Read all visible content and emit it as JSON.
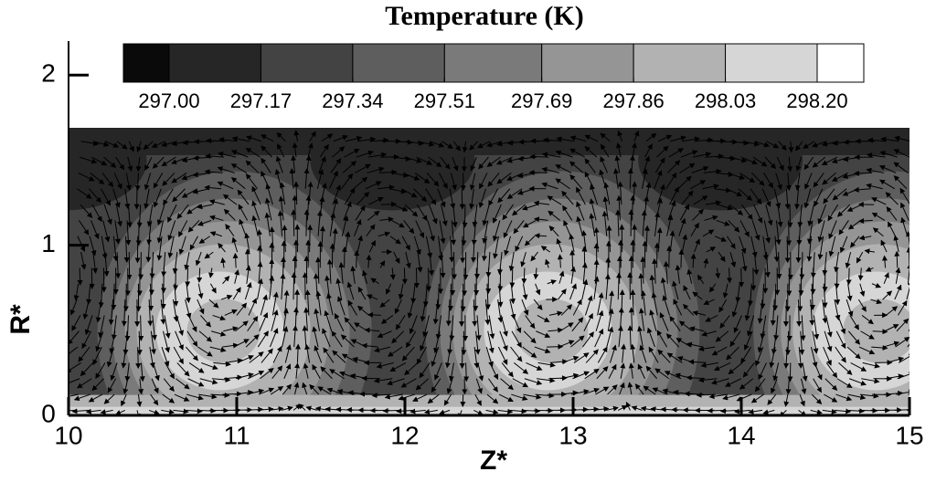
{
  "chart_data": {
    "type": "contour",
    "title": "Temperature (K)",
    "x_label": "Z*",
    "y_label": "R*",
    "xlim": [
      10,
      15
    ],
    "xticks": [
      10,
      11,
      12,
      13,
      14,
      15
    ],
    "ylim": [
      0,
      2.2
    ],
    "yticks": [
      0,
      1,
      2
    ],
    "levels": [
      {
        "value": 297.0,
        "label": "297.00"
      },
      {
        "value": 297.17,
        "label": "297.17"
      },
      {
        "value": 297.34,
        "label": "297.34"
      },
      {
        "value": 297.51,
        "label": "297.51"
      },
      {
        "value": 297.69,
        "label": "297.69"
      },
      {
        "value": 297.86,
        "label": "297.86"
      },
      {
        "value": 298.03,
        "label": "298.03"
      },
      {
        "value": 298.2,
        "label": "298.20"
      }
    ],
    "colors": [
      "#0a0a0a",
      "#262626",
      "#434343",
      "#5e5e5e",
      "#7a7a7a",
      "#959595",
      "#b2b2b2",
      "#d6d6d6",
      "#ffffff"
    ]
  }
}
